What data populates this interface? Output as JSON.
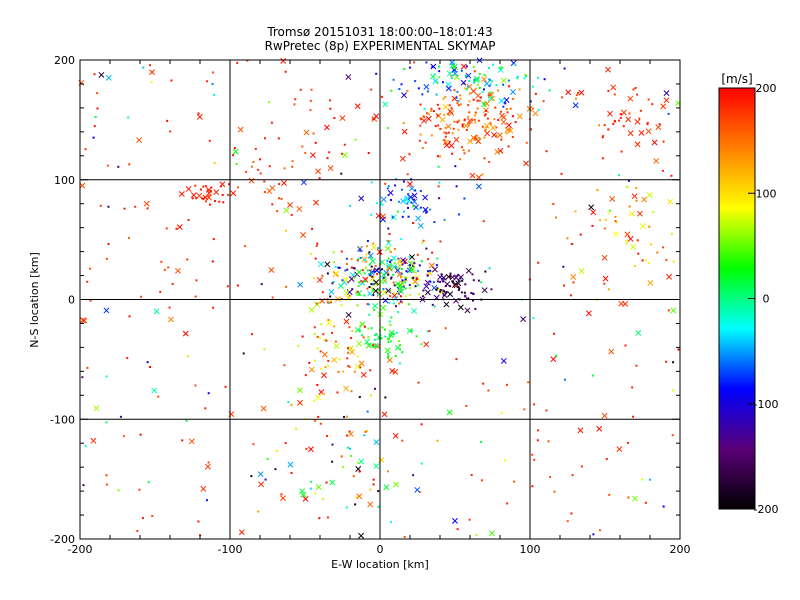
{
  "chart_data": {
    "type": "scatter",
    "title": "Tromsø 20151031 18:00:00–18:01:43",
    "subtitle": "RwPretec (8p) EXPERIMENTAL SKYMAP",
    "xlabel": "E-W location [km]",
    "ylabel": "N-S location [km]",
    "xlim": [
      -200,
      200
    ],
    "ylim": [
      -200,
      200
    ],
    "xticks": [
      "-200",
      "-100",
      "0",
      "100",
      "200"
    ],
    "yticks": [
      "-200",
      "-100",
      "0",
      "100",
      "200"
    ],
    "grid": true,
    "colorbar": {
      "label": "[m/s]",
      "range": [
        -200,
        200
      ],
      "ticks": [
        "200",
        "100",
        "0",
        "-100",
        "-200"
      ],
      "colormap": [
        "#000000",
        "#5a0078",
        "#0000ff",
        "#00ffff",
        "#00ff00",
        "#ffff00",
        "#ff8000",
        "#ff0000"
      ]
    },
    "marker_types": [
      "dot",
      "cross"
    ],
    "clusters": [
      {
        "x": 5,
        "y": 20,
        "sx": 18,
        "sy": 12,
        "n": 260,
        "vmin": -200,
        "vmax": 200
      },
      {
        "x": 50,
        "y": 10,
        "sx": 10,
        "sy": 8,
        "n": 70,
        "vmin": -200,
        "vmax": -120
      },
      {
        "x": 60,
        "y": 150,
        "sx": 22,
        "sy": 15,
        "n": 170,
        "vmin": 120,
        "vmax": 200
      },
      {
        "x": 60,
        "y": 185,
        "sx": 25,
        "sy": 10,
        "n": 110,
        "vmin": -100,
        "vmax": 60
      },
      {
        "x": 20,
        "y": 80,
        "sx": 15,
        "sy": 12,
        "n": 60,
        "vmin": -120,
        "vmax": -20
      },
      {
        "x": -115,
        "y": 88,
        "sx": 6,
        "sy": 5,
        "n": 30,
        "vmin": 170,
        "vmax": 200
      },
      {
        "x": -60,
        "y": 115,
        "sx": 30,
        "sy": 20,
        "n": 40,
        "vmin": 150,
        "vmax": 200
      },
      {
        "x": -30,
        "y": -40,
        "sx": 15,
        "sy": 30,
        "n": 90,
        "vmin": 60,
        "vmax": 200
      },
      {
        "x": 5,
        "y": -30,
        "sx": 10,
        "sy": 12,
        "n": 60,
        "vmin": -20,
        "vmax": 60
      },
      {
        "x": -20,
        "y": -150,
        "sx": 25,
        "sy": 25,
        "n": 50,
        "vmin": -200,
        "vmax": 200
      },
      {
        "x": 165,
        "y": 150,
        "sx": 15,
        "sy": 15,
        "n": 40,
        "vmin": 160,
        "vmax": 200
      },
      {
        "x": 165,
        "y": 60,
        "sx": 20,
        "sy": 30,
        "n": 50,
        "vmin": 60,
        "vmax": 200
      }
    ],
    "background_points": {
      "n": 380,
      "xlim": [
        -200,
        200
      ],
      "ylim": [
        -200,
        200
      ],
      "vmin": -200,
      "vmax": 200
    }
  }
}
